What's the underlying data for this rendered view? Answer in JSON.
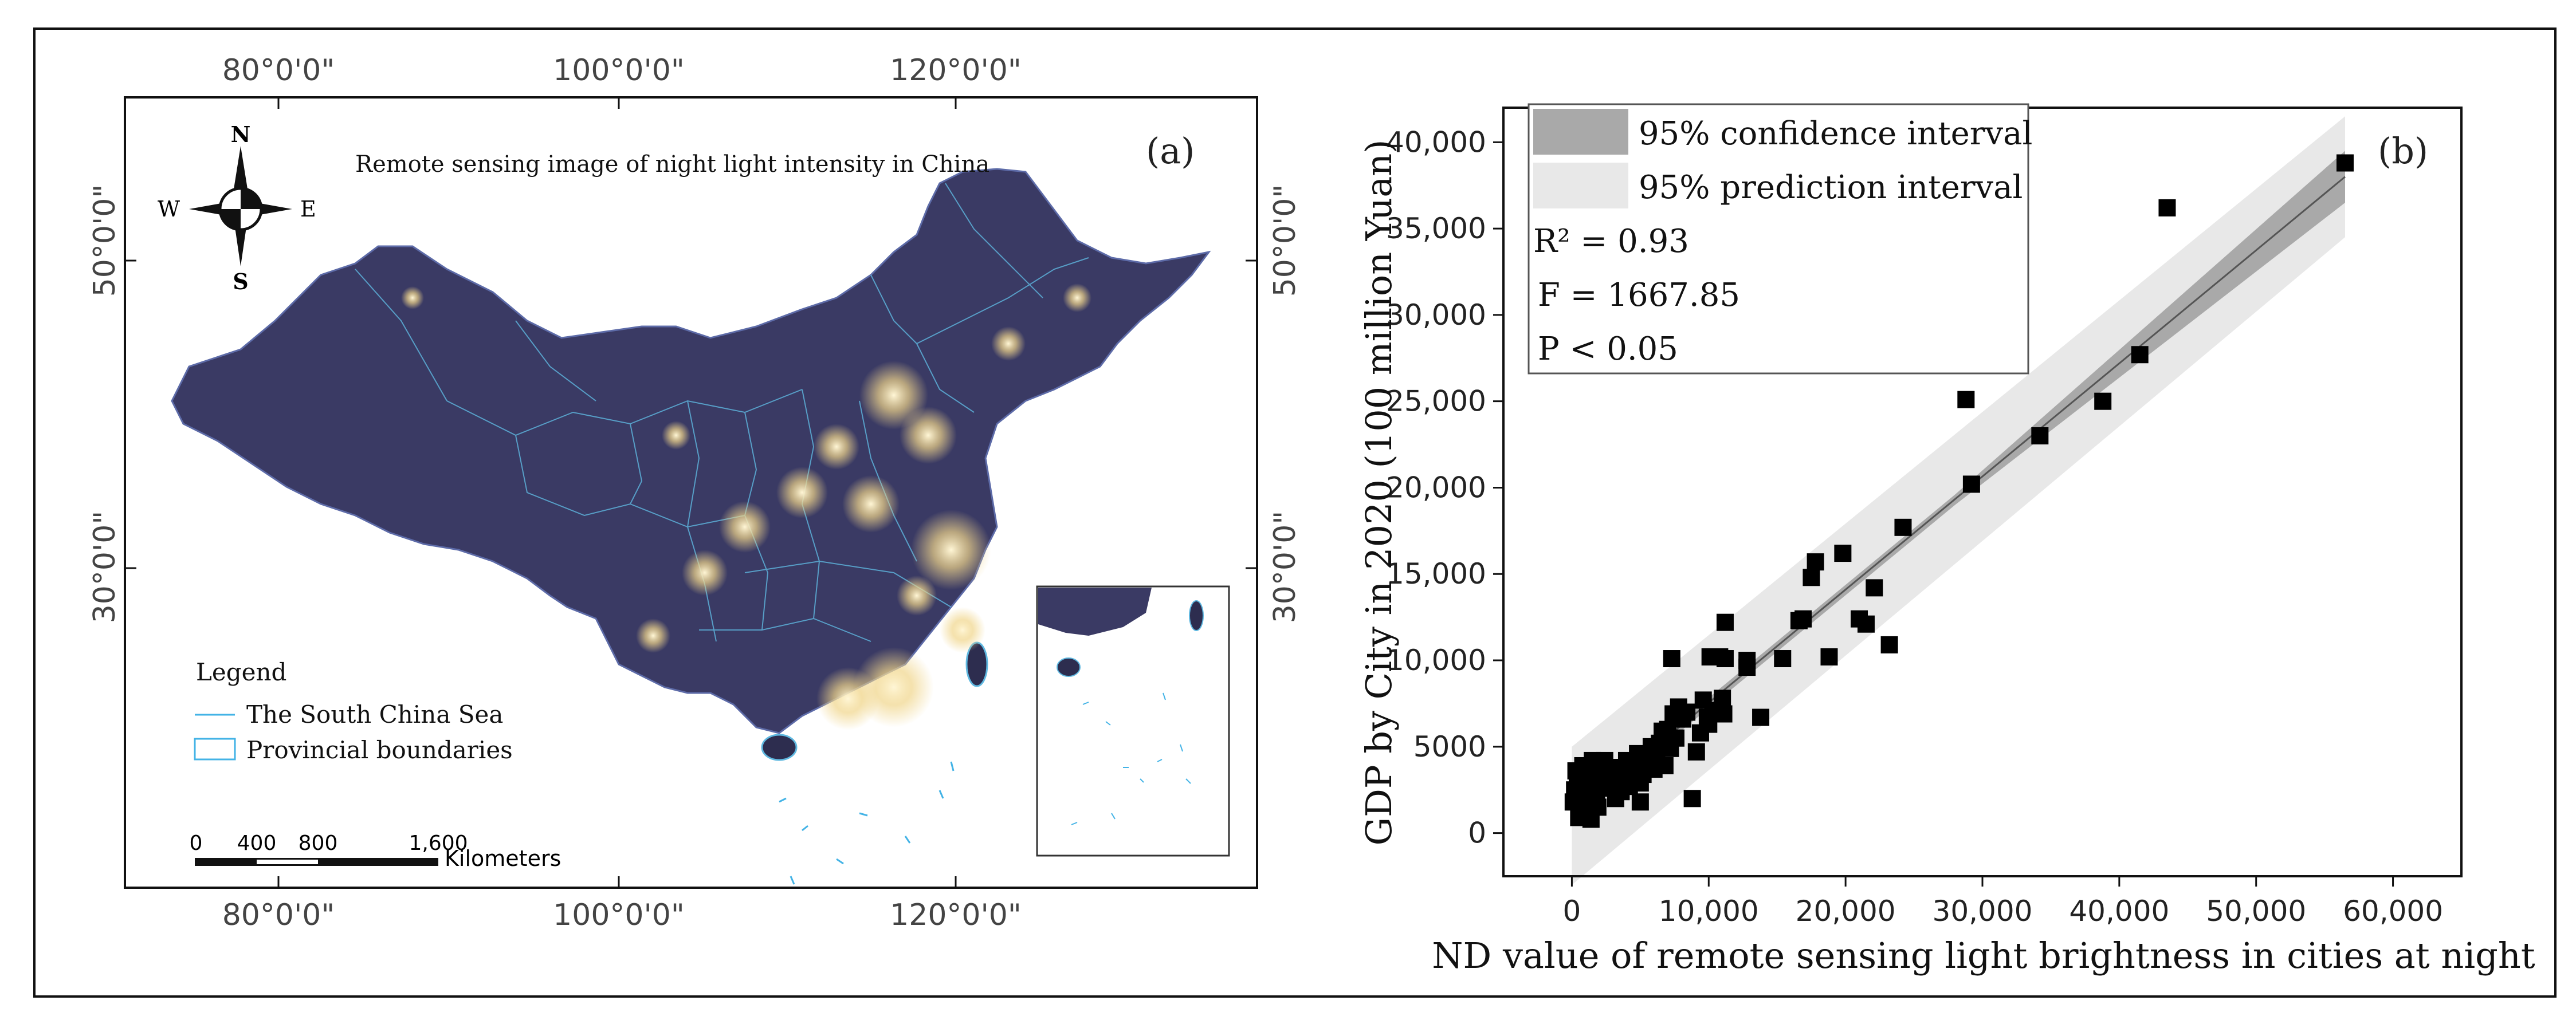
{
  "panel_a": {
    "label": "(a)",
    "title": "Remote sensing image of night light intensity in China",
    "compass": {
      "north": "N",
      "south": "S",
      "east": "E",
      "west": "W"
    },
    "longitude_labels": [
      "80°0'0\"",
      "100°0'0\"",
      "120°0'0\""
    ],
    "latitude_labels": [
      "50°0'0\"",
      "30°0'0\""
    ],
    "legend": {
      "heading": "Legend",
      "items": [
        "The South China Sea",
        "Provincial boundaries"
      ]
    },
    "scale_bar": {
      "ticks": [
        "0",
        "400",
        "800",
        "1,600"
      ],
      "unit": "Kilometers"
    },
    "colors": {
      "land": "#3a3a64",
      "boundary": "#5fb8e0",
      "sea_line": "#43b3e6",
      "light": "#fff3cf"
    }
  },
  "panel_b": {
    "label": "(b)",
    "legend": [
      "95% confidence interval",
      "95% prediction interval"
    ],
    "stats": {
      "r2": "R² = 0.93",
      "f": "F  = 1667.85",
      "p": "P < 0.05"
    },
    "colors": {
      "confidence": "#a9a9a9",
      "prediction": "#e8e8e8",
      "points": "#000000",
      "fit": "#555555"
    }
  },
  "chart_data": {
    "type": "scatter",
    "title": "",
    "xlabel": "ND value of remote sensing light brightness in cities at night",
    "ylabel": "GDP by City in 2020 (100 million Yuan)",
    "xlim": [
      -5000,
      65000
    ],
    "ylim": [
      -2500,
      42000
    ],
    "xticks": [
      0,
      10000,
      20000,
      30000,
      40000,
      50000,
      60000
    ],
    "xtick_labels": [
      "0",
      "10,000",
      "20,000",
      "30,000",
      "40,000",
      "50,000",
      "60,000"
    ],
    "yticks": [
      0,
      5000,
      10000,
      15000,
      20000,
      25000,
      30000,
      35000,
      40000
    ],
    "ytick_labels": [
      "0",
      "5000",
      "10,000",
      "15,000",
      "20,000",
      "25,000",
      "30,000",
      "35,000",
      "40,000"
    ],
    "fit_line": {
      "x": [
        0,
        56500
      ],
      "y": [
        1000,
        38000
      ]
    },
    "confidence_band": {
      "x": [
        0,
        28000,
        56500
      ],
      "lower": [
        700,
        19000,
        36500
      ],
      "upper": [
        1300,
        19600,
        39500
      ]
    },
    "prediction_band": {
      "x": [
        0,
        56500
      ],
      "lower": [
        -3000,
        34500
      ],
      "upper": [
        5000,
        41500
      ]
    },
    "points": [
      [
        56500,
        38800
      ],
      [
        43500,
        36200
      ],
      [
        41500,
        27700
      ],
      [
        38800,
        25000
      ],
      [
        34200,
        23000
      ],
      [
        28800,
        25100
      ],
      [
        29200,
        20200
      ],
      [
        24200,
        17700
      ],
      [
        22100,
        14200
      ],
      [
        21500,
        12100
      ],
      [
        21000,
        12400
      ],
      [
        23200,
        10900
      ],
      [
        19800,
        16200
      ],
      [
        17800,
        15700
      ],
      [
        17500,
        14800
      ],
      [
        16900,
        12400
      ],
      [
        16600,
        12300
      ],
      [
        18800,
        10200
      ],
      [
        15400,
        10100
      ],
      [
        13800,
        6700
      ],
      [
        12800,
        10000
      ],
      [
        12800,
        9600
      ],
      [
        11200,
        12200
      ],
      [
        11200,
        10100
      ],
      [
        10800,
        10200
      ],
      [
        10100,
        10200
      ],
      [
        7300,
        10100
      ],
      [
        11000,
        7800
      ],
      [
        11100,
        6900
      ],
      [
        10300,
        7100
      ],
      [
        10000,
        6300
      ],
      [
        9900,
        6700
      ],
      [
        9600,
        7700
      ],
      [
        9400,
        5800
      ],
      [
        9100,
        4700
      ],
      [
        8800,
        2000
      ],
      [
        8400,
        7000
      ],
      [
        8100,
        6600
      ],
      [
        7800,
        7300
      ],
      [
        7600,
        5500
      ],
      [
        7400,
        6900
      ],
      [
        7200,
        4900
      ],
      [
        7000,
        6000
      ],
      [
        6800,
        3900
      ],
      [
        6600,
        5900
      ],
      [
        6400,
        5200
      ],
      [
        6200,
        4700
      ],
      [
        6000,
        3700
      ],
      [
        5800,
        5000
      ],
      [
        5600,
        4400
      ],
      [
        5400,
        4100
      ],
      [
        5200,
        3400
      ],
      [
        5000,
        2900
      ],
      [
        5000,
        1800
      ],
      [
        4800,
        4600
      ],
      [
        4600,
        3800
      ],
      [
        4400,
        3200
      ],
      [
        4200,
        2700
      ],
      [
        4000,
        4200
      ],
      [
        3800,
        3600
      ],
      [
        3600,
        2400
      ],
      [
        3400,
        3100
      ],
      [
        3200,
        2000
      ],
      [
        3000,
        3800
      ],
      [
        2800,
        2600
      ],
      [
        2600,
        3300
      ],
      [
        2400,
        4200
      ],
      [
        2200,
        2900
      ],
      [
        2000,
        3500
      ],
      [
        1900,
        1500
      ],
      [
        1800,
        2300
      ],
      [
        1600,
        3100
      ],
      [
        1500,
        4200
      ],
      [
        1400,
        800
      ],
      [
        1300,
        1900
      ],
      [
        1200,
        2800
      ],
      [
        1100,
        1300
      ],
      [
        1000,
        3300
      ],
      [
        900,
        2200
      ],
      [
        800,
        3900
      ],
      [
        700,
        1500
      ],
      [
        600,
        2900
      ],
      [
        500,
        900
      ],
      [
        400,
        3300
      ],
      [
        300,
        3600
      ],
      [
        200,
        2500
      ],
      [
        100,
        1800
      ]
    ]
  }
}
